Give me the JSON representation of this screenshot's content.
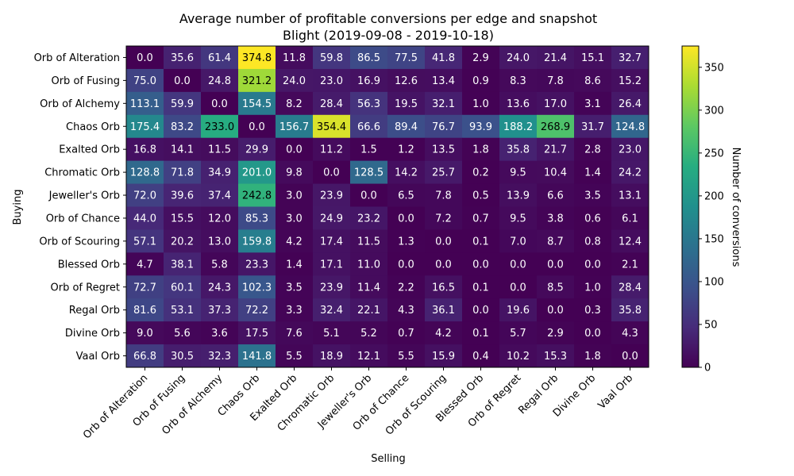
{
  "chart_data": {
    "type": "heatmap",
    "title": "Average number of profitable conversions per edge and snapshot",
    "subtitle": "Blight (2019-09-08 - 2019-10-18)",
    "xlabel": "Selling",
    "ylabel": "Buying",
    "colorbar_label": "Number of conversions",
    "colormap": "viridis",
    "vmin": 0,
    "vmax": 374.8,
    "colorbar_ticks": [
      0,
      50,
      100,
      150,
      200,
      250,
      300,
      350
    ],
    "x_categories": [
      "Orb of Alteration",
      "Orb of Fusing",
      "Orb of Alchemy",
      "Chaos Orb",
      "Exalted Orb",
      "Chromatic Orb",
      "Jeweller's Orb",
      "Orb of Chance",
      "Orb of Scouring",
      "Blessed Orb",
      "Orb of Regret",
      "Regal Orb",
      "Divine Orb",
      "Vaal Orb"
    ],
    "y_categories": [
      "Orb of Alteration",
      "Orb of Fusing",
      "Orb of Alchemy",
      "Chaos Orb",
      "Exalted Orb",
      "Chromatic Orb",
      "Jeweller's Orb",
      "Orb of Chance",
      "Orb of Scouring",
      "Blessed Orb",
      "Orb of Regret",
      "Regal Orb",
      "Divine Orb",
      "Vaal Orb"
    ],
    "values": [
      [
        0.0,
        35.6,
        61.4,
        374.8,
        11.8,
        59.8,
        86.5,
        77.5,
        41.8,
        2.9,
        24.0,
        21.4,
        15.1,
        32.7
      ],
      [
        75.0,
        0.0,
        24.8,
        321.2,
        24.0,
        23.0,
        16.9,
        12.6,
        13.4,
        0.9,
        8.3,
        7.8,
        8.6,
        15.2
      ],
      [
        113.1,
        59.9,
        0.0,
        154.5,
        8.2,
        28.4,
        56.3,
        19.5,
        32.1,
        1.0,
        13.6,
        17.0,
        3.1,
        26.4
      ],
      [
        175.4,
        83.2,
        233.0,
        0.0,
        156.7,
        354.4,
        66.6,
        89.4,
        76.7,
        93.9,
        188.2,
        268.9,
        31.7,
        124.8
      ],
      [
        16.8,
        14.1,
        11.5,
        29.9,
        0.0,
        11.2,
        1.5,
        1.2,
        13.5,
        1.8,
        35.8,
        21.7,
        2.8,
        23.0
      ],
      [
        128.8,
        71.8,
        34.9,
        201.0,
        9.8,
        0.0,
        128.5,
        14.2,
        25.7,
        0.2,
        9.5,
        10.4,
        1.4,
        24.2
      ],
      [
        72.0,
        39.6,
        37.4,
        242.8,
        3.0,
        23.9,
        0.0,
        6.5,
        7.8,
        0.5,
        13.9,
        6.6,
        3.5,
        13.1
      ],
      [
        44.0,
        15.5,
        12.0,
        85.3,
        3.0,
        24.9,
        23.2,
        0.0,
        7.2,
        0.7,
        9.5,
        3.8,
        0.6,
        6.1
      ],
      [
        57.1,
        20.2,
        13.0,
        159.8,
        4.2,
        17.4,
        11.5,
        1.3,
        0.0,
        0.1,
        7.0,
        8.7,
        0.8,
        12.4
      ],
      [
        4.7,
        38.1,
        5.8,
        23.3,
        1.4,
        17.1,
        11.0,
        0.0,
        0.0,
        0.0,
        0.0,
        0.0,
        0.0,
        2.1
      ],
      [
        72.7,
        60.1,
        24.3,
        102.3,
        3.5,
        23.9,
        11.4,
        2.2,
        16.5,
        0.1,
        0.0,
        8.5,
        1.0,
        28.4
      ],
      [
        81.6,
        53.1,
        37.3,
        72.2,
        3.3,
        32.4,
        22.1,
        4.3,
        36.1,
        0.0,
        19.6,
        0.0,
        0.3,
        35.8
      ],
      [
        9.0,
        5.6,
        3.6,
        17.5,
        7.6,
        5.1,
        5.2,
        0.7,
        4.2,
        0.1,
        5.7,
        2.9,
        0.0,
        4.3
      ],
      [
        66.8,
        30.5,
        32.3,
        141.8,
        5.5,
        18.9,
        12.1,
        5.5,
        15.9,
        0.4,
        10.2,
        15.3,
        1.8,
        0.0
      ]
    ]
  }
}
